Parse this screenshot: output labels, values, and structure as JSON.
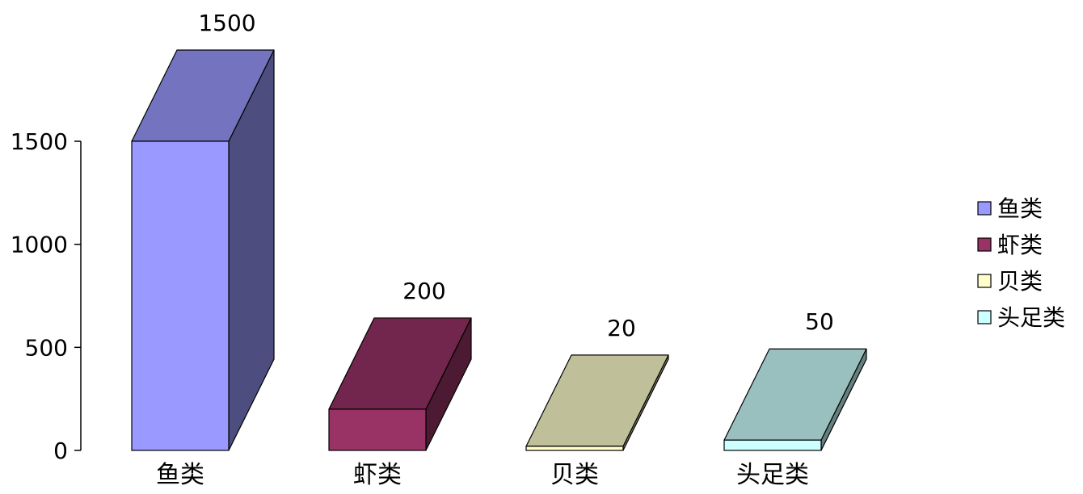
{
  "chart_data": {
    "type": "bar",
    "style": "3d",
    "categories": [
      "鱼类",
      "虾类",
      "贝类",
      "头足类"
    ],
    "values": [
      1500,
      200,
      20,
      50
    ],
    "data_labels": [
      "1500",
      "200",
      "20",
      "50"
    ],
    "series": [
      {
        "name": "鱼类",
        "value": 1500,
        "color": "#9999FF"
      },
      {
        "name": "虾类",
        "value": 200,
        "color": "#993366"
      },
      {
        "name": "贝类",
        "value": 20,
        "color": "#FFFFCC"
      },
      {
        "name": "头足类",
        "value": 50,
        "color": "#CCFFFF"
      }
    ],
    "y_ticks": [
      "0",
      "500",
      "1000",
      "1500"
    ],
    "ylim": [
      0,
      1500
    ],
    "grid": false,
    "legend_position": "right",
    "title": "",
    "xlabel": "",
    "ylabel": ""
  }
}
